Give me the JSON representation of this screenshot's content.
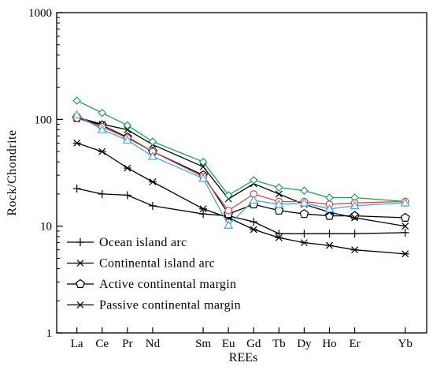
{
  "chart_data": {
    "type": "line",
    "ylabel": "Rock/Chondrite",
    "xlabel": "REEs",
    "y_scale": "log",
    "ylim": [
      1,
      1000
    ],
    "y_ticks": [
      "1",
      "10",
      "100",
      "1000"
    ],
    "categories": [
      "La",
      "Ce",
      "Pr",
      "Nd",
      "Sm",
      "Eu",
      "Gd",
      "Tb",
      "Dy",
      "Ho",
      "Er",
      "Yb"
    ],
    "category_positions": [
      1,
      2,
      3,
      4,
      6,
      7,
      8,
      9,
      10,
      11,
      12,
      14
    ],
    "legend_position": "bottom-left",
    "reference_series": [
      {
        "name": "Ocean island arc",
        "marker": "plus",
        "color": "#000000",
        "values": [
          22.5,
          20,
          19.5,
          15.5,
          13,
          12.5,
          11,
          8.5,
          8.5,
          8.5,
          8.5,
          8.7
        ]
      },
      {
        "name": "Continental island arc",
        "marker": "asterisk",
        "color": "#000000",
        "values": [
          60,
          50,
          35,
          26,
          14.5,
          12,
          9.3,
          7.8,
          7,
          6.6,
          6,
          5.5
        ]
      },
      {
        "name": "Active continental margin",
        "marker": "pentagon",
        "color": "#000000",
        "values": [
          103,
          88,
          68,
          50,
          30,
          13,
          16,
          14,
          13,
          12.5,
          12.5,
          12
        ]
      },
      {
        "name": "Passive continental margin",
        "marker": "x",
        "color": "#000000",
        "values": [
          105,
          90,
          80,
          58,
          36,
          18,
          25,
          20,
          16,
          13.5,
          12,
          10
        ]
      }
    ],
    "sample_series": [
      {
        "marker": "diamond",
        "color": "#22a05a",
        "values": [
          150,
          115,
          88,
          62,
          40,
          19.5,
          27,
          23,
          21.5,
          18.5,
          18.5,
          17
        ]
      },
      {
        "marker": "circle",
        "color": "#c0504d",
        "values": [
          103,
          85,
          67,
          50,
          29,
          14,
          20,
          17,
          17,
          16,
          16.5,
          17
        ]
      },
      {
        "marker": "triangle",
        "color": "#4fa3e0",
        "values": [
          110,
          80,
          64,
          45,
          28,
          10.2,
          17.5,
          16,
          16.5,
          14.5,
          15.5,
          16.5
        ]
      }
    ]
  }
}
